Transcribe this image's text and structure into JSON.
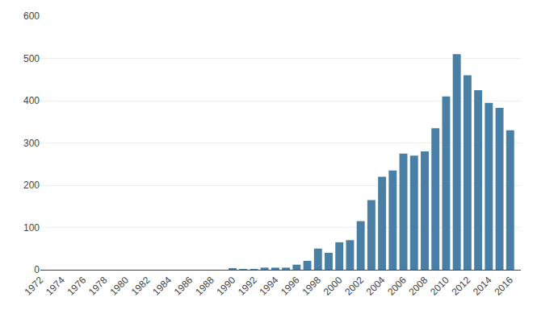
{
  "chart_data": {
    "type": "bar",
    "x": [
      1974,
      1975,
      1976,
      1977,
      1978,
      1979,
      1980,
      1981,
      1982,
      1983,
      1984,
      1985,
      1986,
      1987,
      1988,
      1989,
      1990,
      1991,
      1992,
      1993,
      1994,
      1995,
      1996,
      1997,
      1998,
      1999,
      2000,
      2001,
      2002,
      2003,
      2004,
      2005,
      2006,
      2007,
      2008,
      2009,
      2010,
      2011,
      2012,
      2013,
      2014,
      2015,
      2016
    ],
    "values": [
      0,
      0,
      0,
      0,
      0,
      0,
      0,
      0,
      0,
      0,
      0,
      0,
      0,
      0,
      0,
      0,
      2,
      1,
      1,
      5,
      5,
      5,
      12,
      21,
      50,
      40,
      65,
      70,
      115,
      165,
      220,
      235,
      275,
      270,
      280,
      335,
      410,
      510,
      460,
      425,
      395,
      383,
      330
    ],
    "color": "#4a7fa5",
    "xlim": [
      1972,
      2017
    ],
    "xticks": [
      1972,
      1974,
      1976,
      1978,
      1980,
      1982,
      1984,
      1986,
      1988,
      1990,
      1992,
      1994,
      1996,
      1998,
      2000,
      2002,
      2004,
      2006,
      2008,
      2010,
      2012,
      2014,
      2016
    ],
    "ylim": [
      0,
      600
    ],
    "yticks": [
      0,
      100,
      200,
      300,
      400,
      500,
      600
    ],
    "grid": true
  }
}
